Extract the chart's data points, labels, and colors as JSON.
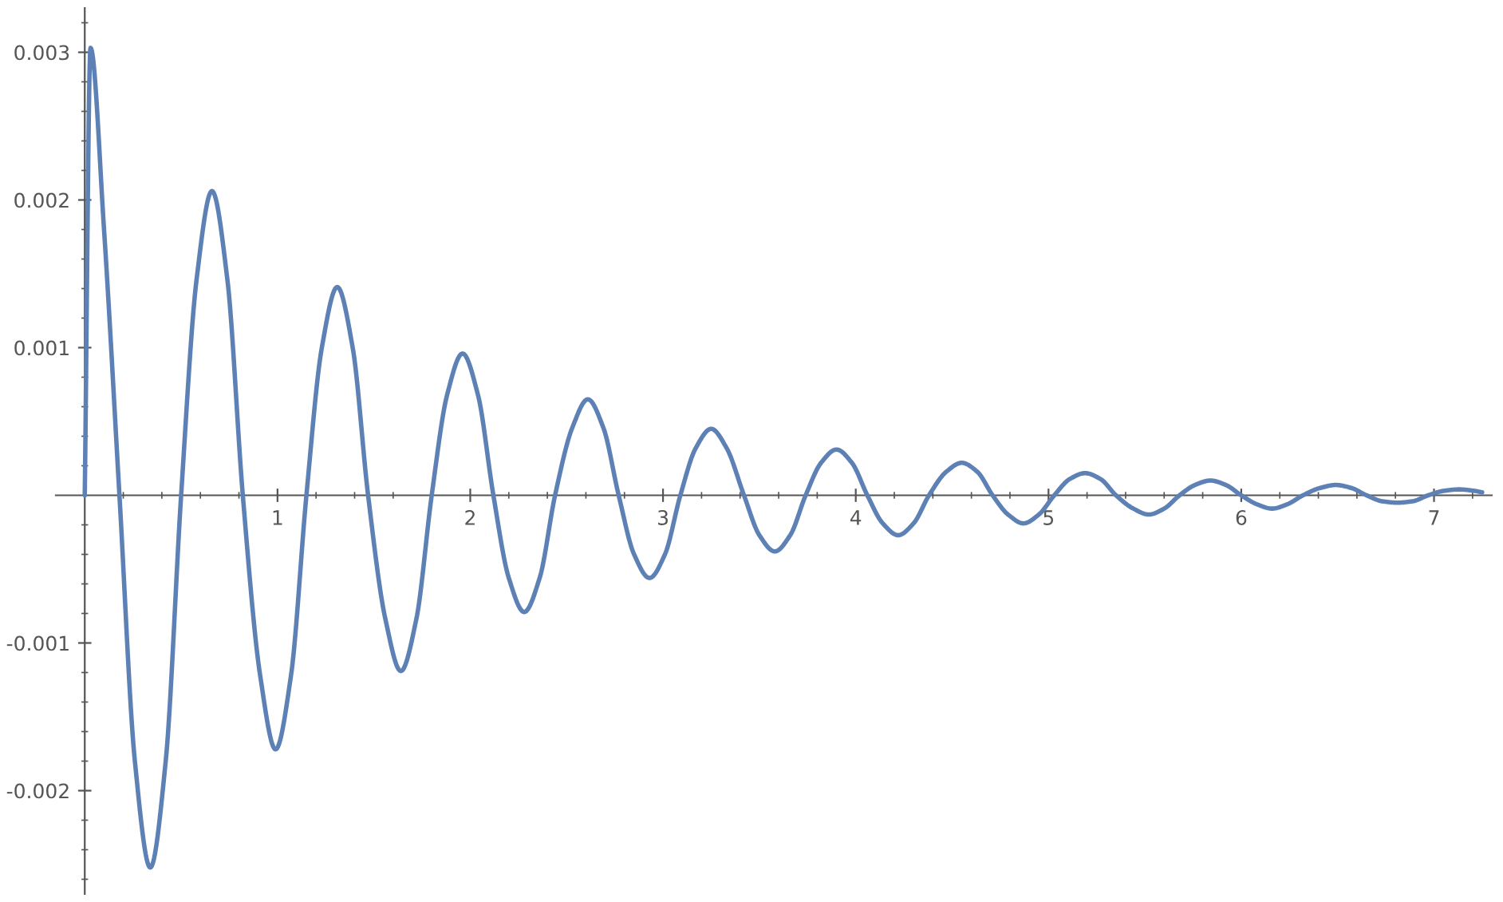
{
  "chart_data": {
    "type": "line",
    "xlim": [
      -0.15,
      7.3
    ],
    "ylim": [
      -0.0027,
      0.0033
    ],
    "xticks": [
      1,
      2,
      3,
      4,
      5,
      6,
      7
    ],
    "yticks": [
      -0.002,
      -0.001,
      0.001,
      0.002,
      0.003
    ],
    "grid": false,
    "marker": "none",
    "line_style": "solid",
    "series": [
      {
        "color": "#5e81b5",
        "x": [
          0,
          0.03,
          0.1,
          0.18,
          0.26,
          0.34,
          0.42,
          0.5,
          0.58,
          0.66,
          0.74,
          0.82,
          0.91,
          0.99,
          1.07,
          1.15,
          1.23,
          1.31,
          1.39,
          1.47,
          1.56,
          1.64,
          1.72,
          1.8,
          1.88,
          1.96,
          2.04,
          2.12,
          2.2,
          2.28,
          2.36,
          2.44,
          2.53,
          2.61,
          2.69,
          2.77,
          2.85,
          2.93,
          3.01,
          3.09,
          3.17,
          3.25,
          3.33,
          3.42,
          3.5,
          3.58,
          3.66,
          3.74,
          3.82,
          3.9,
          3.98,
          4.06,
          4.14,
          4.22,
          4.3,
          4.38,
          4.47,
          4.55,
          4.63,
          4.71,
          4.79,
          4.87,
          4.95,
          5.03,
          5.11,
          5.19,
          5.27,
          5.35,
          5.44,
          5.52,
          5.6,
          5.68,
          5.76,
          5.84,
          5.92,
          6.0,
          6.08,
          6.16,
          6.24,
          6.32,
          6.41,
          6.49,
          6.57,
          6.65,
          6.73,
          6.81,
          6.89,
          6.97,
          7.05,
          7.13,
          7.21,
          7.25
        ],
        "values": [
          0,
          0.00303,
          0.0018,
          0,
          -0.0018,
          -0.00252,
          -0.0018,
          0,
          0.00146,
          0.00206,
          0.00146,
          0,
          -0.00122,
          -0.00172,
          -0.00122,
          0,
          0.001,
          0.00141,
          0.001,
          0,
          -0.00084,
          -0.00119,
          -0.00084,
          0,
          0.00068,
          0.00096,
          0.00068,
          0,
          -0.00056,
          -0.00079,
          -0.00056,
          0,
          0.00046,
          0.00065,
          0.00046,
          0,
          -0.0004,
          -0.00056,
          -0.0004,
          0,
          0.00032,
          0.00045,
          0.00032,
          0,
          -0.00027,
          -0.00038,
          -0.00027,
          0,
          0.00022,
          0.00031,
          0.00022,
          0,
          -0.00019,
          -0.00027,
          -0.00019,
          0,
          0.00016,
          0.00022,
          0.00016,
          0,
          -0.00013,
          -0.00019,
          -0.00013,
          0,
          0.00011,
          0.00015,
          0.00011,
          0,
          -9e-05,
          -0.00013,
          -9e-05,
          0,
          7e-05,
          0.0001,
          7e-05,
          0,
          -6e-05,
          -9e-05,
          -6e-05,
          0,
          5e-05,
          7e-05,
          5e-05,
          0,
          -4e-05,
          -5e-05,
          -4e-05,
          0,
          3e-05,
          4e-05,
          3e-05,
          2e-05
        ]
      }
    ]
  }
}
